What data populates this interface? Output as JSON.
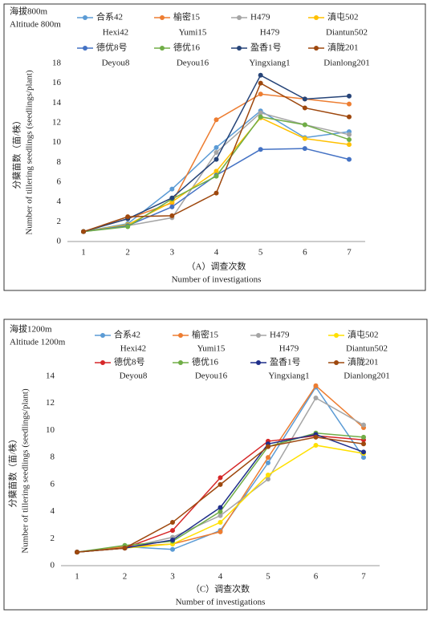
{
  "chart_data": [
    {
      "type": "line",
      "title": "海拔800m",
      "subtitle": "Altitude 800m",
      "y_label": "分蘖苗数（苗/株）",
      "y_label_en": "Number of tillering seedlings (seedlings/plant)",
      "x_label": "（A）调查次数",
      "x_label_en": "Number of investigations",
      "categories": [
        "1",
        "2",
        "3",
        "4",
        "5",
        "6",
        "7"
      ],
      "ylim": [
        0,
        18
      ],
      "yticks": [
        0,
        2,
        4,
        6,
        8,
        10,
        12,
        14,
        16,
        18
      ],
      "grid": false,
      "series": [
        {
          "name": "合系42",
          "name_en": "Hexi42",
          "color": "#5b9bd5",
          "values": [
            1,
            1.8,
            5.3,
            9.5,
            13.2,
            10.5,
            11.1
          ]
        },
        {
          "name": "榆密15",
          "name_en": "Yumi15",
          "color": "#ed7d31",
          "values": [
            1,
            2.3,
            3.9,
            12.3,
            14.9,
            14.4,
            13.9
          ]
        },
        {
          "name": "H479",
          "name_en": "H479",
          "color": "#a5a5a5",
          "values": [
            1,
            1.6,
            2.4,
            9.0,
            13.0,
            11.8,
            10.8
          ]
        },
        {
          "name": "滇屯502",
          "name_en": "Diantun502",
          "color": "#ffc000",
          "values": [
            1,
            1.7,
            4.0,
            7.1,
            12.5,
            10.4,
            9.8
          ]
        },
        {
          "name": "德优8号",
          "name_en": "Deyou8",
          "color": "#4472c4",
          "values": [
            1,
            1.6,
            3.5,
            6.7,
            9.3,
            9.4,
            8.3
          ]
        },
        {
          "name": "德优16",
          "name_en": "Deyou16",
          "color": "#70ad47",
          "values": [
            1,
            1.5,
            4.3,
            6.6,
            12.6,
            11.8,
            10.3
          ]
        },
        {
          "name": "盈香1号",
          "name_en": "Yingxiang1",
          "color": "#264478",
          "values": [
            1,
            2.3,
            4.4,
            8.3,
            16.8,
            14.4,
            14.7
          ]
        },
        {
          "name": "滇陇201",
          "name_en": "Dianlong201",
          "color": "#9e480e",
          "values": [
            1,
            2.5,
            2.6,
            4.9,
            16.0,
            13.5,
            12.6
          ]
        }
      ]
    },
    {
      "type": "line",
      "title": "海拔1200m",
      "subtitle": "Altitude 1200m",
      "y_label": "分蘖苗数（苗/株）",
      "y_label_en": "Number of tillering seedlings (seedlings/plant)",
      "x_label": "（C）调查次数",
      "x_label_en": "Number of investigations",
      "categories": [
        "1",
        "2",
        "3",
        "4",
        "5",
        "6",
        "7"
      ],
      "ylim": [
        0,
        14
      ],
      "yticks": [
        0,
        2,
        4,
        6,
        8,
        10,
        12,
        14
      ],
      "grid": false,
      "series": [
        {
          "name": "合系42",
          "name_en": "Hexi42",
          "color": "#5b9bd5",
          "values": [
            1,
            1.4,
            1.2,
            2.6,
            7.6,
            13.2,
            8.0
          ]
        },
        {
          "name": "榆密15",
          "name_en": "Yumi15",
          "color": "#ed7d31",
          "values": [
            1,
            1.4,
            1.6,
            2.5,
            8.0,
            13.3,
            10.2
          ]
        },
        {
          "name": "H479",
          "name_en": "H479",
          "color": "#a5a5a5",
          "values": [
            1,
            1.3,
            2.1,
            3.7,
            6.4,
            12.4,
            10.4
          ]
        },
        {
          "name": "滇屯502",
          "name_en": "Diantun502",
          "color": "#ffe000",
          "values": [
            1,
            1.3,
            1.6,
            3.2,
            6.7,
            8.9,
            8.3
          ]
        },
        {
          "name": "德优8号",
          "name_en": "Deyou8",
          "color": "#d62728",
          "values": [
            1,
            1.3,
            2.6,
            6.5,
            9.2,
            9.6,
            9.3
          ]
        },
        {
          "name": "德优16",
          "name_en": "Deyou16",
          "color": "#70ad47",
          "values": [
            1,
            1.5,
            1.8,
            4.0,
            8.8,
            9.8,
            9.5
          ]
        },
        {
          "name": "盈香1号",
          "name_en": "Yingxiang1",
          "color": "#1f2f8a",
          "values": [
            1,
            1.3,
            1.9,
            4.3,
            9.0,
            9.7,
            8.4
          ]
        },
        {
          "name": "滇陇201",
          "name_en": "Dianlong201",
          "color": "#9e480e",
          "values": [
            1,
            1.3,
            3.2,
            6.0,
            8.8,
            9.5,
            9.0
          ]
        }
      ]
    }
  ]
}
